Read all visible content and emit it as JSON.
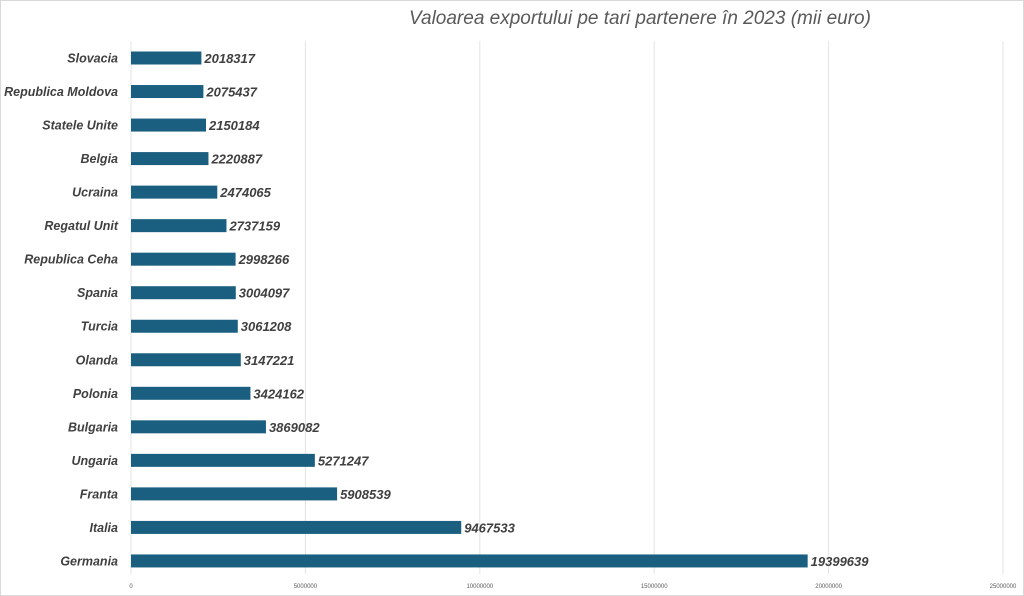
{
  "chart_data": {
    "type": "bar",
    "orientation": "horizontal",
    "title": "Valoarea exportului  pe tari partenere în 2023 (mii euro)",
    "xlabel": "",
    "ylabel": "",
    "xlim": [
      0,
      25000000
    ],
    "xticks": [
      "0",
      "5000000",
      "10000000",
      "15000000",
      "20000000",
      "25000000"
    ],
    "xtick_values": [
      0,
      5000000,
      10000000,
      15000000,
      20000000,
      25000000
    ],
    "grid": "vertical",
    "legend": "none",
    "bar_color": "#1a5f80",
    "categories": [
      "Slovacia",
      "Republica Moldova",
      "Statele Unite",
      "Belgia",
      "Ucraina",
      "Regatul Unit",
      "Republica Ceha",
      "Spania",
      "Turcia",
      "Olanda",
      "Polonia",
      "Bulgaria",
      "Ungaria",
      "Franta",
      "Italia",
      "Germania"
    ],
    "values": [
      2018317,
      2075437,
      2150184,
      2220887,
      2474065,
      2737159,
      2998266,
      3004097,
      3061208,
      3147221,
      3424162,
      3869082,
      5271247,
      5908539,
      9467533,
      19399639
    ],
    "value_labels": [
      "2018317",
      "2075437",
      "2150184",
      "2220887",
      "2474065",
      "2737159",
      "2998266",
      "3004097",
      "3061208",
      "3147221",
      "3424162",
      "3869082",
      "5271247",
      "5908539",
      "9467533",
      "19399639"
    ]
  }
}
